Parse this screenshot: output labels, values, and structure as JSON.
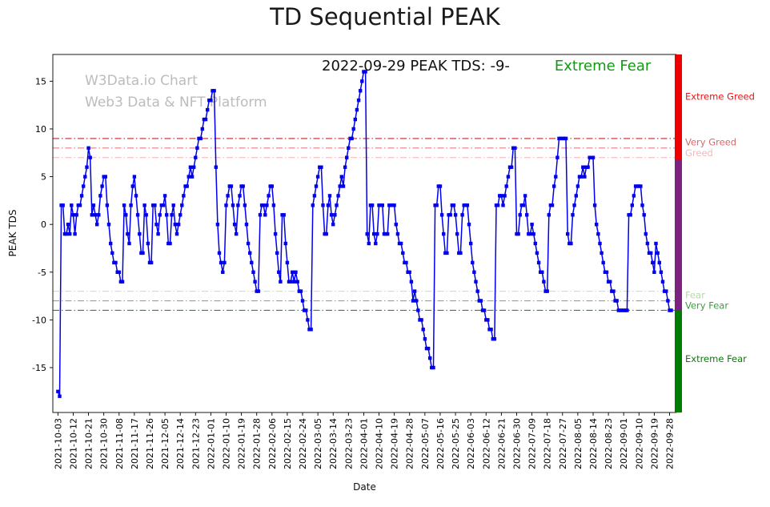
{
  "watermark": {
    "line1": "W3Data.io Chart",
    "line2": "Web3 Data & NFT Platform"
  },
  "annotation": {
    "text": "2022-09-29 PEAK TDS: -9-",
    "status": "Extreme Fear"
  },
  "colors": {
    "line": "#0000ee",
    "status_green": "#0f9d0f",
    "watermark_gray": "#bcbcbc",
    "title_black": "#1a1a1a"
  },
  "chart_data": {
    "type": "line",
    "title": "TD Sequential PEAK",
    "xlabel": "Date",
    "ylabel": "PEAK TDS",
    "series_name": "PEAK TDS",
    "marker": "square",
    "line_color": "#0000ee",
    "grid": false,
    "start_date": "2021-10-03",
    "end_date": "2022-09-29",
    "x_tick_interval_days": 9,
    "ylim": [
      -19.7,
      17.8
    ],
    "y_ticks": [
      -15,
      -10,
      -5,
      0,
      5,
      10,
      15
    ],
    "x_tick_labels": [
      "2021-10-03",
      "2021-10-12",
      "2021-10-21",
      "2021-10-30",
      "2021-11-08",
      "2021-11-17",
      "2021-11-26",
      "2021-12-05",
      "2021-12-14",
      "2021-12-23",
      "2022-01-01",
      "2022-01-10",
      "2022-01-19",
      "2022-01-28",
      "2022-02-06",
      "2022-02-15",
      "2022-02-24",
      "2022-03-05",
      "2022-03-14",
      "2022-03-23",
      "2022-04-01",
      "2022-04-10",
      "2022-04-19",
      "2022-04-28",
      "2022-05-07",
      "2022-05-16",
      "2022-05-25",
      "2022-06-03",
      "2022-06-12",
      "2022-06-21",
      "2022-06-30",
      "2022-07-09",
      "2022-07-18",
      "2022-07-27",
      "2022-08-05",
      "2022-08-14",
      "2022-08-23",
      "2022-09-01",
      "2022-09-10",
      "2022-09-19",
      "2022-09-28"
    ],
    "values": [
      -17.5,
      -18,
      2,
      2,
      -1,
      -1,
      0,
      -1,
      2,
      1,
      -1,
      1,
      2,
      2,
      3,
      4,
      5,
      6,
      8,
      7,
      1,
      2,
      1,
      0,
      1,
      3,
      4,
      5,
      5,
      2,
      0,
      -2,
      -3,
      -4,
      -4,
      -5,
      -5,
      -6,
      -6,
      2,
      1,
      -1,
      -2,
      2,
      4,
      5,
      3,
      1,
      -1,
      -3,
      -3,
      2,
      1,
      -2,
      -4,
      -4,
      2,
      2,
      0,
      -1,
      1,
      2,
      2,
      3,
      1,
      -2,
      -2,
      1,
      2,
      0,
      -1,
      0,
      1,
      2,
      3,
      4,
      4,
      5,
      6,
      5,
      6,
      7,
      8,
      9,
      9,
      10,
      11,
      11,
      12,
      13,
      13,
      14,
      14,
      6,
      0,
      -3,
      -4,
      -5,
      -4,
      2,
      3,
      4,
      4,
      2,
      0,
      -1,
      2,
      3,
      4,
      4,
      2,
      0,
      -2,
      -3,
      -4,
      -5,
      -6,
      -7,
      -7,
      1,
      2,
      2,
      1,
      2,
      3,
      4,
      4,
      2,
      -1,
      -3,
      -5,
      -6,
      1,
      1,
      -2,
      -4,
      -6,
      -6,
      -5,
      -6,
      -5,
      -6,
      -7,
      -7,
      -8,
      -9,
      -9,
      -10,
      -11,
      -11,
      2,
      3,
      4,
      5,
      6,
      6,
      2,
      -1,
      -1,
      2,
      3,
      1,
      0,
      1,
      2,
      3,
      4,
      5,
      4,
      6,
      7,
      8,
      9,
      9,
      10,
      11,
      12,
      13,
      14,
      15,
      16,
      16,
      -1,
      -2,
      2,
      2,
      -1,
      -2,
      -1,
      2,
      2,
      2,
      -1,
      -1,
      -1,
      2,
      2,
      2,
      2,
      0,
      -1,
      -2,
      -2,
      -3,
      -4,
      -4,
      -5,
      -5,
      -6,
      -8,
      -7,
      -8,
      -9,
      -10,
      -10,
      -11,
      -12,
      -13,
      -13,
      -14,
      -15,
      -15,
      2,
      2,
      4,
      4,
      1,
      -1,
      -3,
      -3,
      1,
      1,
      2,
      2,
      1,
      -1,
      -3,
      -3,
      1,
      2,
      2,
      2,
      0,
      -2,
      -4,
      -5,
      -6,
      -7,
      -8,
      -8,
      -9,
      -9,
      -10,
      -10,
      -11,
      -11,
      -12,
      -12,
      2,
      2,
      3,
      3,
      2,
      3,
      4,
      5,
      6,
      6,
      8,
      8,
      -1,
      -1,
      1,
      2,
      2,
      3,
      1,
      -1,
      -1,
      0,
      -1,
      -2,
      -3,
      -4,
      -5,
      -5,
      -6,
      -7,
      -7,
      1,
      2,
      2,
      4,
      5,
      7,
      9,
      9,
      9,
      9,
      9,
      -1,
      -2,
      -2,
      1,
      2,
      3,
      4,
      5,
      5,
      6,
      5,
      6,
      6,
      7,
      7,
      7,
      2,
      0,
      -1,
      -2,
      -3,
      -4,
      -5,
      -5,
      -6,
      -6,
      -7,
      -7,
      -8,
      -8,
      -9,
      -9,
      -9,
      -9,
      -9,
      -9,
      1,
      1,
      2,
      3,
      4,
      4,
      4,
      4,
      2,
      1,
      -1,
      -2,
      -3,
      -3,
      -4,
      -5,
      -2,
      -3,
      -4,
      -5,
      -6,
      -7,
      -7,
      -8,
      -9,
      -9
    ],
    "reference_lines": [
      {
        "y": 9,
        "color": "#cc2222",
        "style": "dashdot"
      },
      {
        "y": 8,
        "color": "#e87e7e",
        "style": "dashdot"
      },
      {
        "y": 7,
        "color": "#f5bcbc",
        "style": "dashdot"
      },
      {
        "y": -7,
        "color": "#bedfbe",
        "style": "dashdot"
      },
      {
        "y": -8,
        "color": "#72bd72",
        "style": "dashdot"
      },
      {
        "y": -9,
        "color": "#2e8b2e",
        "style": "dashdot"
      }
    ],
    "zone_labels": [
      {
        "text": "Extreme Greed",
        "color": "#ee1111",
        "y": 13.4
      },
      {
        "text": "Very Greed",
        "color": "#d96a6a",
        "y": 8.6
      },
      {
        "text": "Greed",
        "color": "#f0b9b9",
        "y": 7.5
      },
      {
        "text": "Fear",
        "color": "#b5d9a8",
        "y": -7.4
      },
      {
        "text": "Very Fear",
        "color": "#3f9b3f",
        "y": -8.5
      },
      {
        "text": "Extreme Fear",
        "color": "#0e7a0e",
        "y": -14.1
      }
    ],
    "colorbar_colors": [
      "#ee0000",
      "#7d2181",
      "#007c00"
    ],
    "legend_position": "none"
  }
}
